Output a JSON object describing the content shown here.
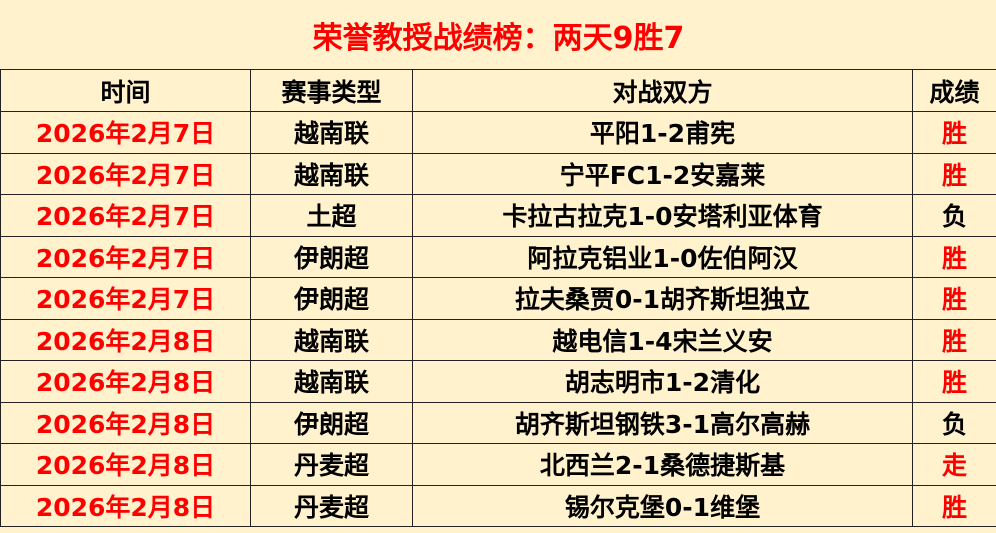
{
  "title": "荣誉教授战绩榜：两天9胜7",
  "headers": [
    "时间",
    "赛事类型",
    "对战双方",
    "成绩"
  ],
  "colors": {
    "background": "#fff2cc",
    "accent": "#ff0000",
    "text": "#000000"
  },
  "rows": [
    {
      "date": "2026年2月7日",
      "league": "越南联",
      "match": "平阳1-2甫宪",
      "result": "胜"
    },
    {
      "date": "2026年2月7日",
      "league": "越南联",
      "match": "宁平FC1-2安嘉莱",
      "result": "胜"
    },
    {
      "date": "2026年2月7日",
      "league": "土超",
      "match": "卡拉古拉克1-0安塔利亚体育",
      "result": "负"
    },
    {
      "date": "2026年2月7日",
      "league": "伊朗超",
      "match": "阿拉克铝业1-0佐伯阿汉",
      "result": "胜"
    },
    {
      "date": "2026年2月7日",
      "league": "伊朗超",
      "match": "拉夫桑贾0-1胡齐斯坦独立",
      "result": "胜"
    },
    {
      "date": "2026年2月8日",
      "league": "越南联",
      "match": "越电信1-4宋兰义安",
      "result": "胜"
    },
    {
      "date": "2026年2月8日",
      "league": "越南联",
      "match": "胡志明市1-2清化",
      "result": "胜"
    },
    {
      "date": "2026年2月8日",
      "league": "伊朗超",
      "match": "胡齐斯坦钢铁3-1高尔高赫",
      "result": "负"
    },
    {
      "date": "2026年2月8日",
      "league": "丹麦超",
      "match": "北西兰2-1桑德捷斯基",
      "result": "走"
    },
    {
      "date": "2026年2月8日",
      "league": "丹麦超",
      "match": "锡尔克堡0-1维堡",
      "result": "胜"
    }
  ]
}
